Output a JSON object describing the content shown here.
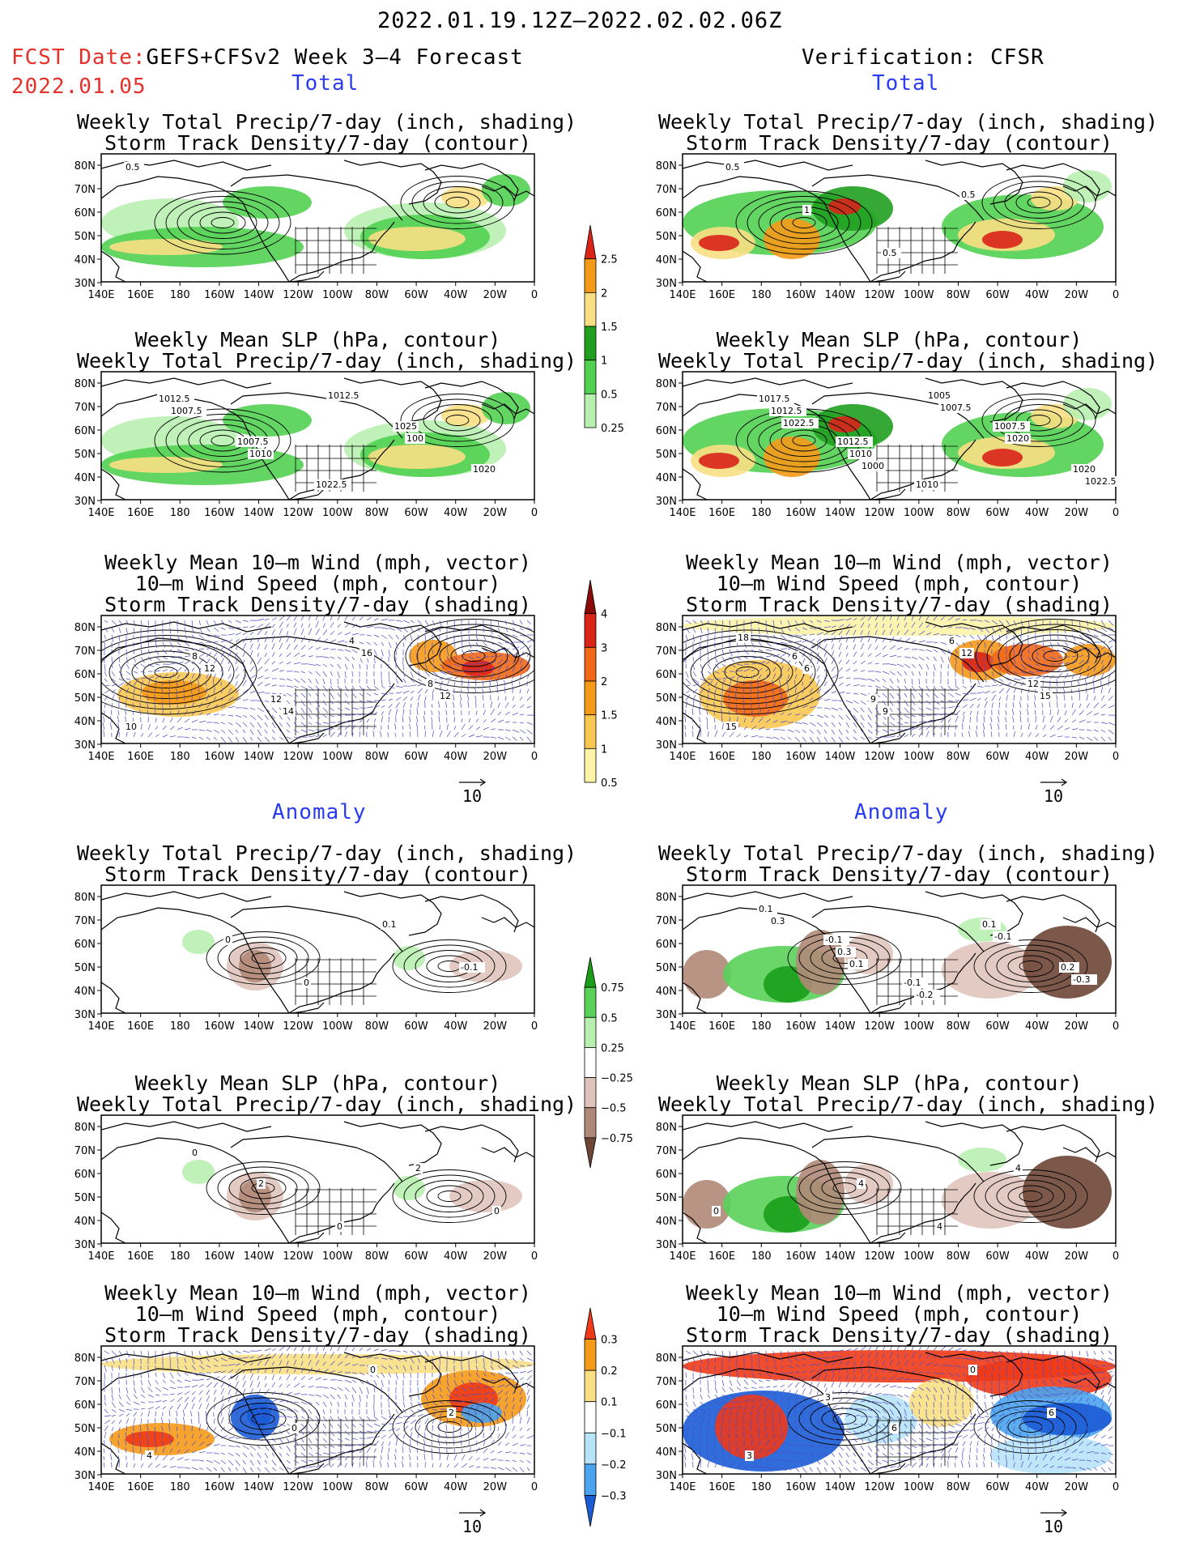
{
  "header": {
    "date_range": "2022.01.19.12Z–2022.02.02.06Z",
    "fcst_label": "FCST Date:",
    "fcst_model": "GEFS+CFSv2 Week 3–4 Forecast",
    "fcst_date": "2022.01.05",
    "verification": "Verification: CFSR"
  },
  "sections": {
    "total": "Total",
    "anomaly": "Anomaly"
  },
  "panel_titles": {
    "precip_storm": [
      "Weekly Total Precip/7-day (inch, shading)",
      "Storm Track Density/7-day (contour)"
    ],
    "slp_precip": [
      "Weekly Mean SLP (hPa, contour)",
      "Weekly Total Precip/7-day (inch, shading)"
    ],
    "wind_storm": [
      "Weekly Mean 10–m Wind (mph, vector)",
      "10–m Wind Speed (mph, contour)",
      "Storm Track Density/7-day (shading)"
    ]
  },
  "axes": {
    "lat_labels": [
      "80N",
      "70N",
      "60N",
      "50N",
      "40N",
      "30N"
    ],
    "lon_labels": [
      "140E",
      "160E",
      "180",
      "160W",
      "140W",
      "120W",
      "100W",
      "80W",
      "60W",
      "40W",
      "20W",
      "0"
    ]
  },
  "vector_ref": "10",
  "colorbars": {
    "precip_total": {
      "labels": [
        "2.5",
        "2",
        "1.5",
        "1",
        "0.5",
        "0.25"
      ],
      "colors": [
        "#d9241a",
        "#f59a18",
        "#f8df84",
        "#1f9e1f",
        "#52d052",
        "#b8f0b0"
      ]
    },
    "storm_total": {
      "labels": [
        "4",
        "3",
        "2",
        "1.5",
        "1",
        "0.5"
      ],
      "colors": [
        "#8a0a0a",
        "#d9241a",
        "#f06818",
        "#f59a18",
        "#f8c850",
        "#fcf4a8"
      ]
    },
    "precip_anom": {
      "labels": [
        "0.75",
        "0.5",
        "0.25",
        "−0.25",
        "−0.5",
        "−0.75"
      ],
      "colors": [
        "#1a9e1a",
        "#5ad25a",
        "#b8f0b0",
        "#ffffff",
        "#e0c4bc",
        "#b08878",
        "#6e4636"
      ]
    },
    "storm_anom": {
      "labels": [
        "0.3",
        "0.2",
        "0.1",
        "−0.1",
        "−0.2",
        "−0.3"
      ],
      "colors": [
        "#ee3a18",
        "#f59a18",
        "#f8df84",
        "#ffffff",
        "#b8e4f8",
        "#4aa4ee",
        "#1a5cd6"
      ]
    }
  },
  "contour_labels": {
    "l1": [
      "0.5"
    ],
    "r1": [
      "0.5",
      "1",
      "0.5",
      "0.5"
    ],
    "l2": [
      "1012.5",
      "1007.5",
      "1022.5",
      "1025",
      "1020",
      "1007.5",
      "1010",
      "1012.5",
      "100"
    ],
    "r2": [
      "1017.5",
      "1012.5",
      "1010",
      "1007.5",
      "1020",
      "1012.5",
      "1010",
      "1005",
      "1020",
      "1022.5",
      "1022.5",
      "1000",
      "1007.5"
    ],
    "l3": [
      "8",
      "12",
      "4",
      "8",
      "10",
      "12",
      "14",
      "16",
      "12"
    ],
    "r3": [
      "6",
      "9",
      "6",
      "12",
      "15",
      "6",
      "9",
      "12",
      "15",
      "18"
    ],
    "l4": [
      "0",
      "0",
      "0.1",
      "-0.1"
    ],
    "r4": [
      "-0.1",
      "-0.1",
      "0.1",
      "0.2",
      "0.1",
      "0.3",
      "-0.2",
      "-0.1",
      "-0.3",
      "0.3",
      "0.1"
    ],
    "l5": [
      "2",
      "0",
      "2",
      "0",
      "0"
    ],
    "r5": [
      "4",
      "4",
      "4",
      "0"
    ],
    "l6": [
      "0",
      "0",
      "2",
      "4"
    ],
    "r6": [
      "6",
      "0",
      "6",
      "3",
      "3"
    ]
  }
}
